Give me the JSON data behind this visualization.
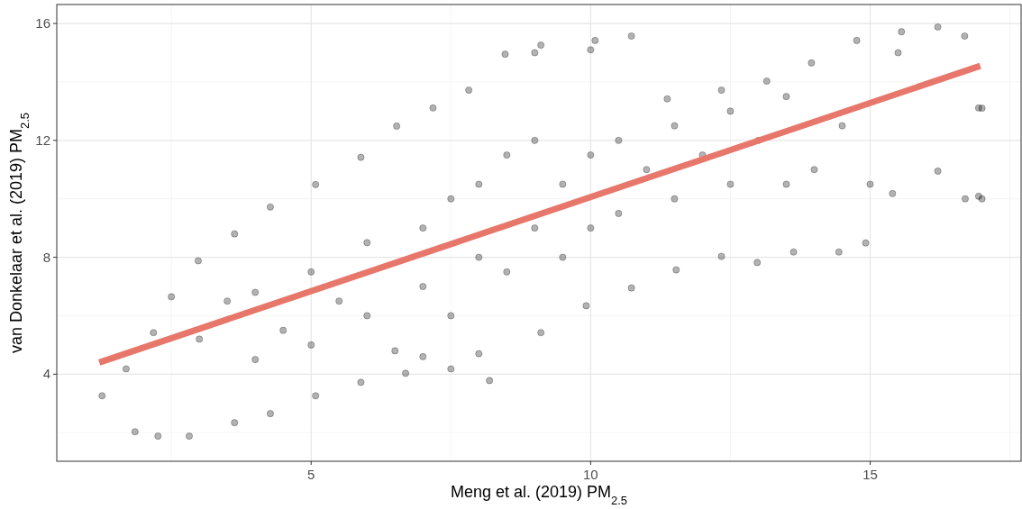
{
  "chart_data": {
    "type": "scatter",
    "xlabel": "Meng et al. (2019) PM$_{2.5}$",
    "ylabel": "van Donkelaar et al. (2019) PM$_{2.5}$",
    "xlim": [
      0.45,
      17.7
    ],
    "xticks": [
      5,
      10,
      15
    ],
    "ylim": [
      1.02,
      16.65
    ],
    "yticks": [
      4,
      8,
      12,
      16
    ],
    "grid": true,
    "series": [
      {
        "marker": "circle",
        "color": "#000000",
        "x": [
          1.26,
          1.85,
          2.26,
          2.82,
          3.63,
          4.27,
          5.08,
          5.89,
          6.69,
          7.5,
          8.19,
          9.11,
          9.92,
          10.73,
          11.53,
          12.34,
          12.98,
          13.63,
          14.44,
          14.92,
          15.4,
          16.21,
          16.94,
          16.94,
          16.69,
          16.21,
          15.56,
          14.76,
          13.95,
          13.15,
          12.34,
          11.37,
          10.73,
          10.08,
          9.11,
          8.47,
          7.82,
          7.18,
          6.53,
          5.89,
          5.08,
          4.27,
          3.63,
          2.98,
          2.5,
          2.18,
          1.69,
          3,
          3.5,
          4,
          4,
          4.5,
          5,
          5,
          5.5,
          6,
          6,
          6.5,
          7,
          7,
          7.5,
          7.5,
          8,
          8,
          8.5,
          8.5,
          9,
          9,
          9.5,
          9.5,
          10,
          10,
          10.5,
          10.5,
          11,
          11.5,
          11.5,
          12,
          12.5,
          12.5,
          13,
          13.5,
          13.5,
          14,
          14.5,
          15,
          15.5,
          7,
          8,
          9,
          10,
          17,
          17,
          16.7
        ],
        "values": [
          3.26,
          2.03,
          1.88,
          1.88,
          2.34,
          2.65,
          3.26,
          3.72,
          4.03,
          4.18,
          3.78,
          5.42,
          6.34,
          6.95,
          7.57,
          8.03,
          7.82,
          8.18,
          8.18,
          8.49,
          10.18,
          10.95,
          10.09,
          13.11,
          15.57,
          15.88,
          15.72,
          15.42,
          14.65,
          14.03,
          13.72,
          13.42,
          15.57,
          15.42,
          15.26,
          14.95,
          13.72,
          13.11,
          12.49,
          11.42,
          10.49,
          9.72,
          8.8,
          7.88,
          6.65,
          5.42,
          4.18,
          5.2,
          6.5,
          4.5,
          6.8,
          5.5,
          7.5,
          5,
          6.5,
          8.5,
          6,
          4.8,
          9,
          7,
          10,
          6,
          10.5,
          8,
          11.5,
          7.5,
          12,
          9,
          10.5,
          8,
          11.5,
          9,
          12,
          9.5,
          11,
          12.5,
          10,
          11.5,
          13,
          10.5,
          12,
          13.5,
          10.5,
          11,
          12.5,
          10.5,
          15,
          4.6,
          4.7,
          15,
          15.1,
          13.1,
          10,
          10
        ]
      },
      {
        "type": "line",
        "color": "#e8776b",
        "x": [
          1.21,
          16.97
        ],
        "values": [
          4.4,
          14.55
        ]
      }
    ]
  }
}
